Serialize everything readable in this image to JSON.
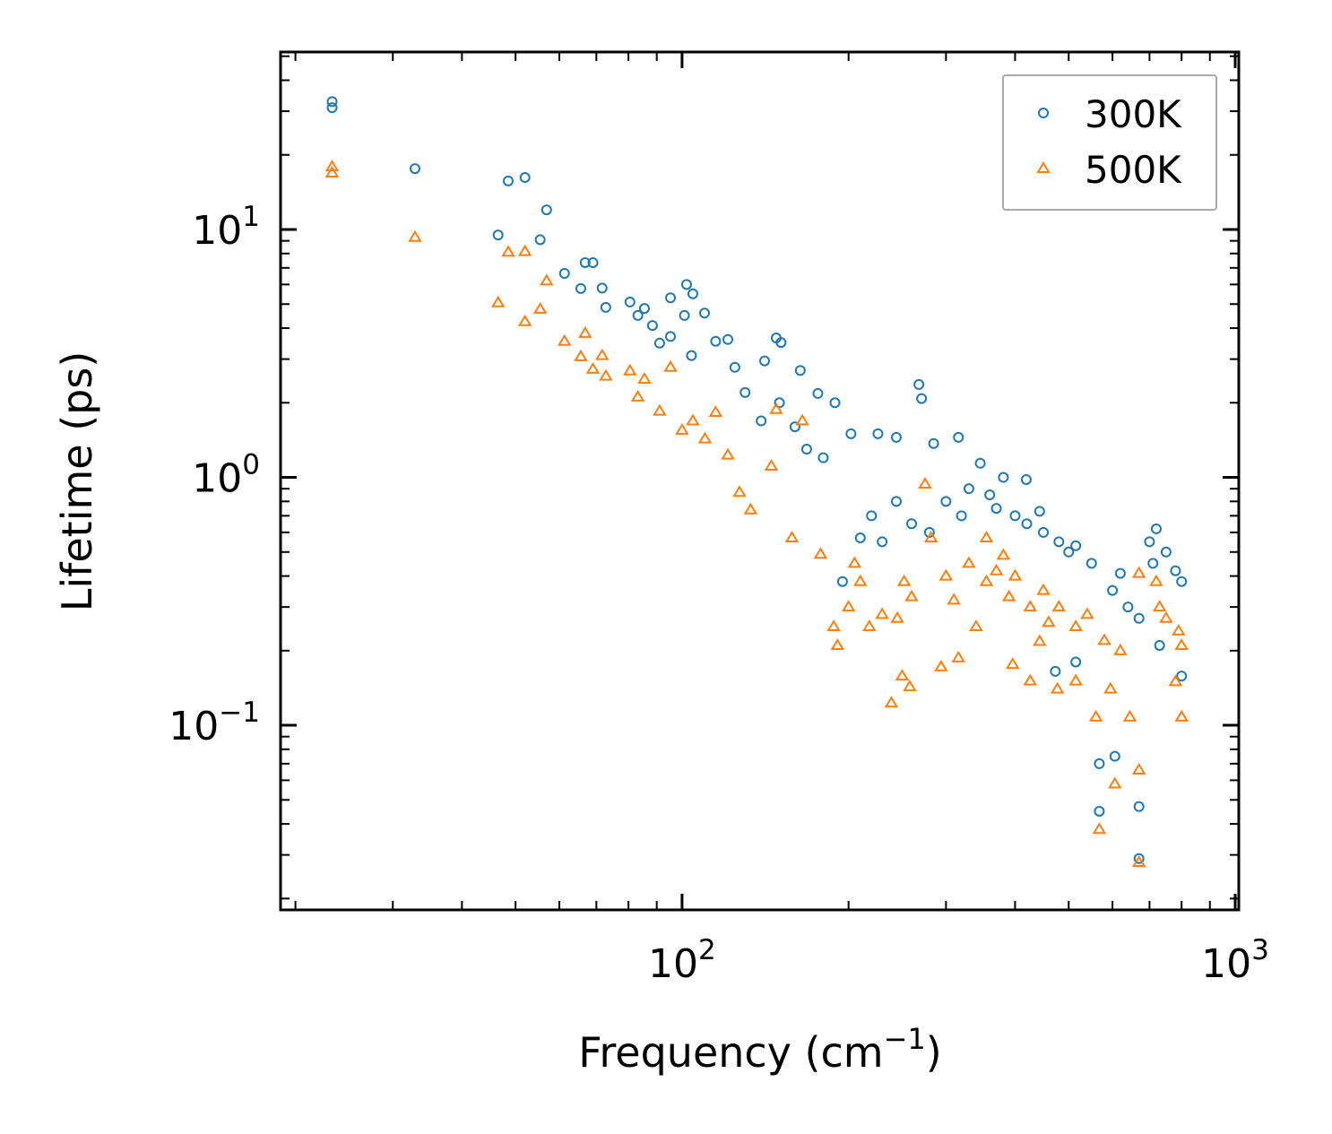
{
  "chart_data": {
    "type": "scatter",
    "title": "",
    "xlabel": {
      "text": "Frequency (cm",
      "sup": "−1",
      "tail": ")"
    },
    "ylabel": "Lifetime (ps)",
    "xscale": "log",
    "yscale": "log",
    "xlim": [
      18.8,
      1015
    ],
    "ylim": [
      0.018,
      52
    ],
    "x_ticks": [
      {
        "value": 100,
        "base": "10",
        "exp": "2"
      },
      {
        "value": 1000,
        "base": "10",
        "exp": "3"
      }
    ],
    "y_ticks": [
      {
        "value": 0.1,
        "base": "10",
        "exp": "−1"
      },
      {
        "value": 1,
        "base": "10",
        "exp": "0"
      },
      {
        "value": 10,
        "base": "10",
        "exp": "1"
      }
    ],
    "grid": false,
    "legend_position": "top-right",
    "series": [
      {
        "name": "300K",
        "marker": "circle",
        "color": "#1f77b4",
        "points": [
          [
            23.3,
            32.8
          ],
          [
            23.3,
            31
          ],
          [
            32.9,
            17.6
          ],
          [
            46.5,
            9.5
          ],
          [
            48.5,
            15.7
          ],
          [
            52,
            16.2
          ],
          [
            55.4,
            9.1
          ],
          [
            56.9,
            12
          ],
          [
            61.3,
            6.65
          ],
          [
            65.6,
            5.78
          ],
          [
            66.8,
            7.35
          ],
          [
            69,
            7.35
          ],
          [
            71.7,
            5.8
          ],
          [
            72.8,
            4.85
          ],
          [
            80.5,
            5.1
          ],
          [
            83.2,
            4.5
          ],
          [
            85.5,
            4.8
          ],
          [
            88.4,
            4.1
          ],
          [
            91.1,
            3.48
          ],
          [
            95.3,
            5.3
          ],
          [
            95.3,
            3.7
          ],
          [
            101.9,
            6.0
          ],
          [
            104.6,
            5.5
          ],
          [
            101,
            4.5
          ],
          [
            109.8,
            4.6
          ],
          [
            104,
            3.1
          ],
          [
            115,
            3.54
          ],
          [
            121,
            3.6
          ],
          [
            124.6,
            2.78
          ],
          [
            141,
            2.95
          ],
          [
            148,
            3.65
          ],
          [
            151,
            3.5
          ],
          [
            163.6,
            2.7
          ],
          [
            176,
            2.18
          ],
          [
            189,
            2.0
          ],
          [
            202,
            1.5
          ],
          [
            226,
            1.5
          ],
          [
            244,
            1.45
          ],
          [
            268,
            2.37
          ],
          [
            271,
            2.08
          ],
          [
            285,
            1.37
          ],
          [
            316,
            1.45
          ],
          [
            346,
            1.14
          ],
          [
            381,
            1.0
          ],
          [
            419,
            0.98
          ],
          [
            443,
            0.73
          ],
          [
            515,
            0.53
          ],
          [
            620,
            0.41
          ],
          [
            720,
            0.62
          ],
          [
            800,
            0.38
          ],
          [
            800,
            0.158
          ],
          [
            730,
            0.21
          ],
          [
            670,
            0.27
          ],
          [
            670,
            0.029
          ],
          [
            670,
            0.047
          ],
          [
            568,
            0.07
          ],
          [
            568,
            0.045
          ],
          [
            606,
            0.075
          ],
          [
            515,
            0.18
          ],
          [
            473,
            0.165
          ],
          [
            195,
            0.38
          ],
          [
            210,
            0.57
          ],
          [
            244,
            0.8
          ],
          [
            168,
            1.3
          ],
          [
            139,
            1.69
          ],
          [
            150,
            2.0
          ],
          [
            130,
            2.2
          ],
          [
            160,
            1.6
          ],
          [
            180,
            1.2
          ],
          [
            220,
            0.7
          ],
          [
            260,
            0.65
          ],
          [
            300,
            0.8
          ],
          [
            330,
            0.9
          ],
          [
            360,
            0.85
          ],
          [
            400,
            0.7
          ],
          [
            450,
            0.6
          ],
          [
            480,
            0.55
          ],
          [
            550,
            0.45
          ],
          [
            600,
            0.35
          ],
          [
            700,
            0.55
          ],
          [
            750,
            0.5
          ],
          [
            780,
            0.42
          ],
          [
            230,
            0.55
          ],
          [
            280,
            0.6
          ],
          [
            320,
            0.7
          ],
          [
            370,
            0.75
          ],
          [
            420,
            0.65
          ],
          [
            500,
            0.5
          ],
          [
            640,
            0.3
          ],
          [
            710,
            0.45
          ]
        ]
      },
      {
        "name": "500K",
        "marker": "triangle",
        "color": "#ff7f0e",
        "points": [
          [
            23.3,
            17.9
          ],
          [
            23.3,
            16.9
          ],
          [
            32.9,
            9.3
          ],
          [
            46.5,
            5.06
          ],
          [
            48.5,
            8.1
          ],
          [
            52,
            8.15
          ],
          [
            52,
            4.25
          ],
          [
            55.4,
            4.77
          ],
          [
            56.9,
            6.2
          ],
          [
            61.3,
            3.54
          ],
          [
            65.6,
            3.07
          ],
          [
            66.8,
            3.81
          ],
          [
            69,
            2.73
          ],
          [
            71.7,
            3.1
          ],
          [
            72.8,
            2.56
          ],
          [
            80.5,
            2.69
          ],
          [
            83.2,
            2.11
          ],
          [
            85.5,
            2.49
          ],
          [
            91.1,
            1.85
          ],
          [
            95.3,
            2.78
          ],
          [
            100,
            1.55
          ],
          [
            104.6,
            1.69
          ],
          [
            110,
            1.43
          ],
          [
            115,
            1.83
          ],
          [
            121,
            1.23
          ],
          [
            127,
            0.87
          ],
          [
            133,
            0.74
          ],
          [
            145,
            1.11
          ],
          [
            148,
            1.88
          ],
          [
            158,
            0.57
          ],
          [
            165,
            1.69
          ],
          [
            178,
            0.49
          ],
          [
            188,
            0.25
          ],
          [
            191,
            0.21
          ],
          [
            210,
            0.38
          ],
          [
            239,
            0.123
          ],
          [
            250,
            0.158
          ],
          [
            258,
            0.143
          ],
          [
            294,
            0.172
          ],
          [
            316,
            0.187
          ],
          [
            340,
            0.25
          ],
          [
            355,
            0.57
          ],
          [
            381,
            0.485
          ],
          [
            396,
            0.176
          ],
          [
            426,
            0.151
          ],
          [
            443,
            0.218
          ],
          [
            477,
            0.14
          ],
          [
            515,
            0.151
          ],
          [
            560,
            0.108
          ],
          [
            595,
            0.14
          ],
          [
            606,
            0.058
          ],
          [
            568,
            0.038
          ],
          [
            670,
            0.028
          ],
          [
            670,
            0.066
          ],
          [
            645,
            0.108
          ],
          [
            720,
            0.38
          ],
          [
            780,
            0.15
          ],
          [
            800,
            0.108
          ],
          [
            800,
            0.21
          ],
          [
            282,
            0.57
          ],
          [
            252,
            0.38
          ],
          [
            218,
            0.25
          ],
          [
            355,
            0.38
          ],
          [
            426,
            0.3
          ],
          [
            515,
            0.25
          ],
          [
            670,
            0.41
          ],
          [
            730,
            0.3
          ],
          [
            275,
            0.94
          ],
          [
            200,
            0.3
          ],
          [
            230,
            0.28
          ],
          [
            260,
            0.33
          ],
          [
            300,
            0.4
          ],
          [
            330,
            0.45
          ],
          [
            370,
            0.42
          ],
          [
            400,
            0.4
          ],
          [
            450,
            0.35
          ],
          [
            480,
            0.3
          ],
          [
            540,
            0.28
          ],
          [
            580,
            0.22
          ],
          [
            620,
            0.2
          ],
          [
            750,
            0.27
          ],
          [
            790,
            0.24
          ],
          [
            205,
            0.45
          ],
          [
            245,
            0.27
          ],
          [
            310,
            0.32
          ],
          [
            390,
            0.33
          ],
          [
            460,
            0.26
          ]
        ]
      }
    ]
  }
}
